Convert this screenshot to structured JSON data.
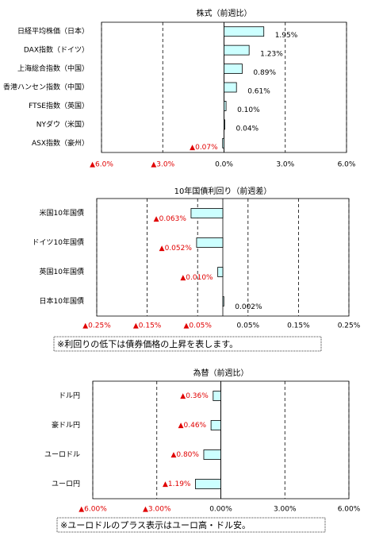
{
  "chart_data": [
    {
      "type": "hbar",
      "title": "株式（前週比）",
      "categories": [
        "日経平均株価（日本）",
        "DAX指数（ドイツ）",
        "上海総合指数（中国）",
        "香港ハンセン指数（中国）",
        "FTSE指数（英国）",
        "NYダウ（米国）",
        "ASX指数（豪州）"
      ],
      "values": [
        1.95,
        1.23,
        0.89,
        0.61,
        0.1,
        0.04,
        -0.07
      ],
      "value_labels": [
        "1.95%",
        "1.23%",
        "0.89%",
        "0.61%",
        "0.10%",
        "0.04%",
        "▲0.07%"
      ],
      "color": "#ccffff",
      "xlim": [
        -6,
        6
      ],
      "xticks": [
        {
          "value": -6,
          "label": "▲6.0%"
        },
        {
          "value": -3,
          "label": "▲3.0%"
        },
        {
          "value": 0,
          "label": "0.0%"
        },
        {
          "value": 3,
          "label": "3.0%"
        },
        {
          "value": 6,
          "label": "6.0%"
        }
      ],
      "grid": true
    },
    {
      "type": "hbar",
      "title": "10年国債利回り（前週差）",
      "categories": [
        "米国10年国債",
        "ドイツ10年国債",
        "英国10年国債",
        "日本10年国債"
      ],
      "values": [
        -0.063,
        -0.052,
        -0.01,
        0.002
      ],
      "value_labels": [
        "▲0.063%",
        "▲0.052%",
        "▲0.010%",
        "0.002%"
      ],
      "color": "#ccffff",
      "xlim": [
        -0.25,
        0.25
      ],
      "xticks": [
        {
          "value": -0.25,
          "label": "▲0.25%"
        },
        {
          "value": -0.15,
          "label": "▲0.15%"
        },
        {
          "value": -0.05,
          "label": "▲0.05%"
        },
        {
          "value": 0.05,
          "label": "0.05%"
        },
        {
          "value": 0.15,
          "label": "0.15%"
        },
        {
          "value": 0.25,
          "label": "0.25%"
        }
      ],
      "grid": true,
      "note": "※利回りの低下は債券価格の上昇を表します。"
    },
    {
      "type": "hbar",
      "title": "為替（前週比）",
      "categories": [
        "ドル円",
        "豪ドル円",
        "ユーロドル",
        "ユーロ円"
      ],
      "values": [
        -0.36,
        -0.46,
        -0.8,
        -1.19
      ],
      "value_labels": [
        "▲0.36%",
        "▲0.46%",
        "▲0.80%",
        "▲1.19%"
      ],
      "color": "#ccffff",
      "xlim": [
        -6,
        6
      ],
      "xticks": [
        {
          "value": -6,
          "label": "▲6.00%"
        },
        {
          "value": -3,
          "label": "▲3.00%"
        },
        {
          "value": 0,
          "label": "0.00%"
        },
        {
          "value": 3,
          "label": "3.00%"
        },
        {
          "value": 6,
          "label": "6.00%"
        }
      ],
      "grid": true,
      "note": "※ユーロドルのプラス表示はユーロ高・ドル安。"
    }
  ]
}
